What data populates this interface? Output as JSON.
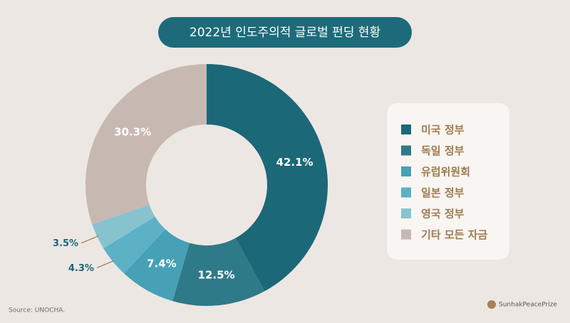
{
  "chart_data": {
    "type": "donut",
    "title": "2022년 인도주의적 글로벌 펀딩 현황",
    "categories": [
      "미국 정부",
      "독일 정부",
      "유럽위원회",
      "일본 정부",
      "영국 정부",
      "기타 모든 자금"
    ],
    "values": [
      42.1,
      12.5,
      7.4,
      4.3,
      3.5,
      30.3
    ],
    "value_labels": [
      "42.1%",
      "12.5%",
      "7.4%",
      "4.3%",
      "3.5%",
      "30.3%"
    ],
    "colors": [
      "#1b6878",
      "#2f7a88",
      "#46a0b6",
      "#5cb1c5",
      "#87c3cf",
      "#c7b9b1"
    ]
  },
  "footer": {
    "source": "Source: UNOCHA.",
    "brand": "SunhakPeacePrize"
  }
}
